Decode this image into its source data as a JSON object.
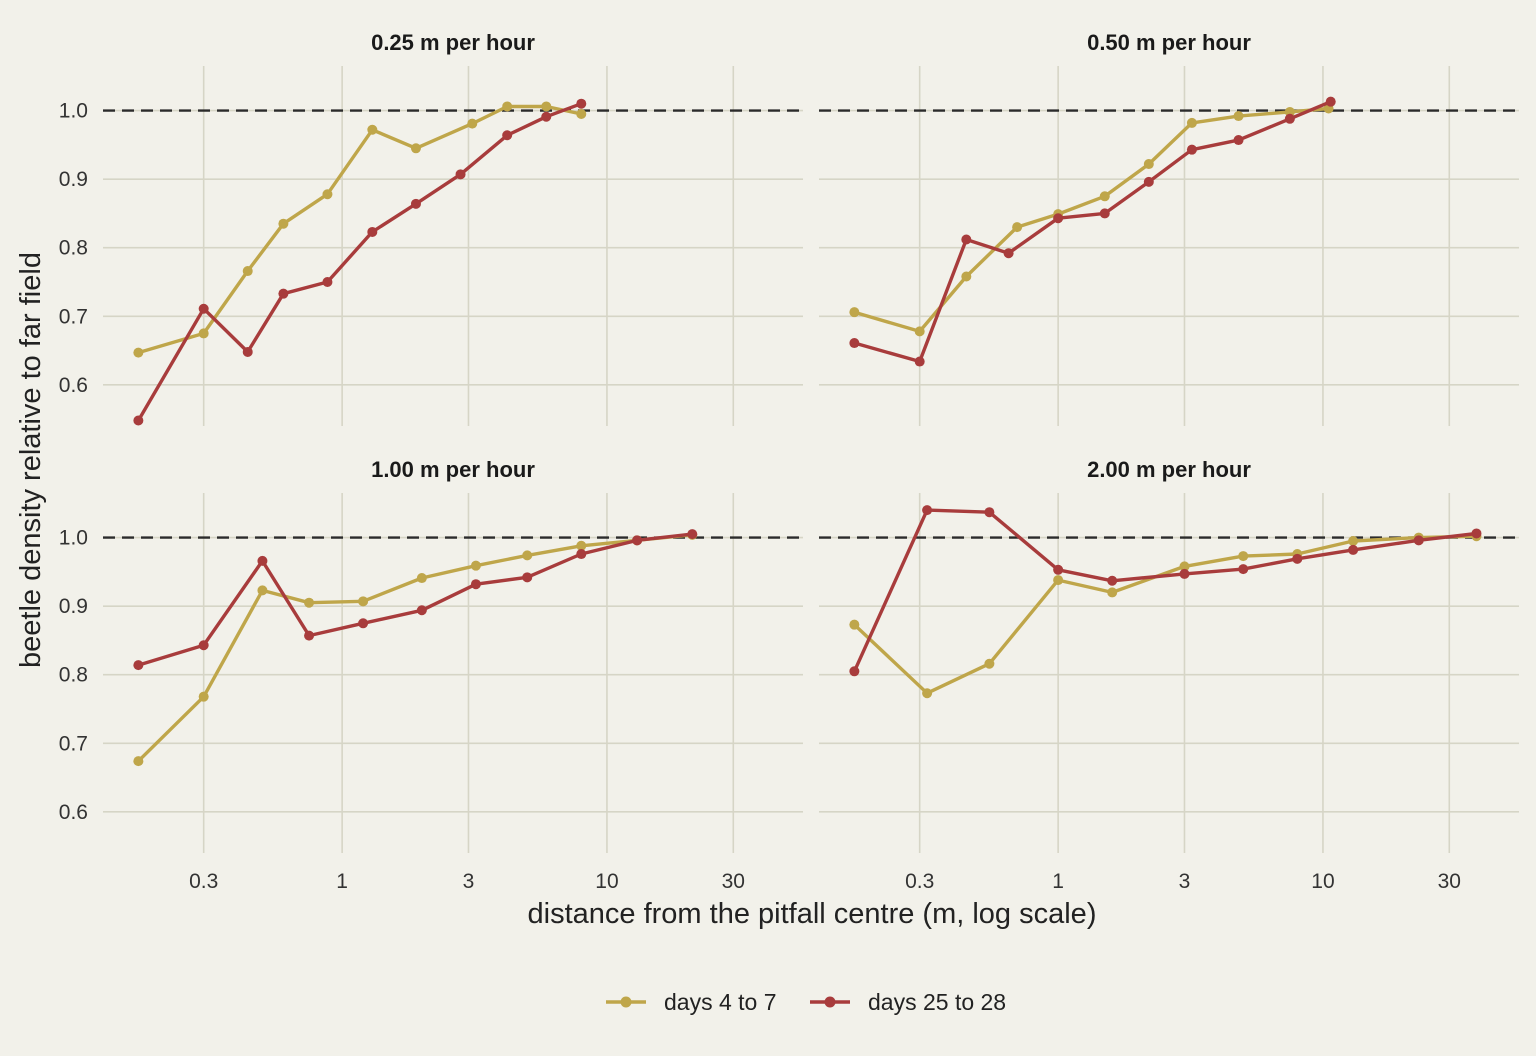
{
  "chart_data": {
    "type": "line",
    "xlabel": "distance from the pitfall centre (m, log scale)",
    "ylabel": "beetle density relative to far field",
    "x_scale": "log",
    "xlim": [
      0.125,
      55
    ],
    "ylim": [
      0.54,
      1.065
    ],
    "x_ticks": [
      0.3,
      1,
      3,
      10,
      30
    ],
    "x_tick_labels": [
      "0.3",
      "1",
      "3",
      "10",
      "30"
    ],
    "y_ticks": [
      0.6,
      0.7,
      0.8,
      0.9,
      1.0
    ],
    "y_tick_labels": [
      "0.6",
      "0.7",
      "0.8",
      "0.9",
      "1.0"
    ],
    "reference_line": 1.0,
    "grid": true,
    "legend_position": "bottom",
    "series_styles": [
      {
        "name": "days 4 to 7",
        "color": "#bfa64a"
      },
      {
        "name": "days 25 to 28",
        "color": "#a83c3c"
      }
    ],
    "panels": [
      {
        "title": "0.25 m per hour",
        "series": [
          {
            "name": "days 4 to 7",
            "x": [
              0.17,
              0.3,
              0.44,
              0.6,
              0.88,
              1.3,
              1.9,
              3.1,
              4.2,
              5.9,
              8.0
            ],
            "y": [
              0.647,
              0.675,
              0.766,
              0.835,
              0.878,
              0.972,
              0.945,
              0.981,
              1.006,
              1.006,
              0.995
            ]
          },
          {
            "name": "days 25 to 28",
            "x": [
              0.17,
              0.3,
              0.44,
              0.6,
              0.88,
              1.3,
              1.9,
              2.8,
              4.2,
              5.9,
              8.0
            ],
            "y": [
              0.548,
              0.711,
              0.648,
              0.733,
              0.75,
              0.823,
              0.864,
              0.907,
              0.964,
              0.991,
              1.01
            ]
          }
        ]
      },
      {
        "title": "0.50 m per hour",
        "series": [
          {
            "name": "days 4 to 7",
            "x": [
              0.17,
              0.3,
              0.45,
              0.7,
              1.0,
              1.5,
              2.2,
              3.2,
              4.8,
              7.5,
              10.5
            ],
            "y": [
              0.706,
              0.678,
              0.758,
              0.83,
              0.849,
              0.875,
              0.922,
              0.982,
              0.992,
              0.998,
              1.003
            ]
          },
          {
            "name": "days 25 to 28",
            "x": [
              0.17,
              0.3,
              0.45,
              0.65,
              1.0,
              1.5,
              2.2,
              3.2,
              4.8,
              7.5,
              10.7
            ],
            "y": [
              0.661,
              0.634,
              0.812,
              0.792,
              0.843,
              0.85,
              0.896,
              0.943,
              0.957,
              0.988,
              1.013
            ]
          }
        ]
      },
      {
        "title": "1.00 m per hour",
        "series": [
          {
            "name": "days 4 to 7",
            "x": [
              0.17,
              0.3,
              0.5,
              0.75,
              1.2,
              2.0,
              3.2,
              5.0,
              8.0,
              13.0,
              21.0
            ],
            "y": [
              0.674,
              0.768,
              0.923,
              0.905,
              0.907,
              0.941,
              0.959,
              0.974,
              0.988,
              0.996,
              1.004
            ]
          },
          {
            "name": "days 25 to 28",
            "x": [
              0.17,
              0.3,
              0.5,
              0.75,
              1.2,
              2.0,
              3.2,
              5.0,
              8.0,
              13.0,
              21.0
            ],
            "y": [
              0.814,
              0.843,
              0.966,
              0.857,
              0.875,
              0.894,
              0.932,
              0.942,
              0.976,
              0.996,
              1.005
            ]
          }
        ]
      },
      {
        "title": "2.00 m per hour",
        "series": [
          {
            "name": "days 4 to 7",
            "x": [
              0.17,
              0.32,
              0.55,
              1.0,
              1.6,
              3.0,
              5.0,
              8.0,
              13.0,
              23.0,
              38.0
            ],
            "y": [
              0.873,
              0.773,
              0.816,
              0.938,
              0.92,
              0.958,
              0.973,
              0.976,
              0.995,
              1.0,
              1.002
            ]
          },
          {
            "name": "days 25 to 28",
            "x": [
              0.17,
              0.32,
              0.55,
              1.0,
              1.6,
              3.0,
              5.0,
              8.0,
              13.0,
              23.0,
              38.0
            ],
            "y": [
              0.805,
              1.04,
              1.037,
              0.953,
              0.937,
              0.947,
              0.954,
              0.969,
              0.982,
              0.996,
              1.006
            ]
          }
        ]
      }
    ]
  }
}
